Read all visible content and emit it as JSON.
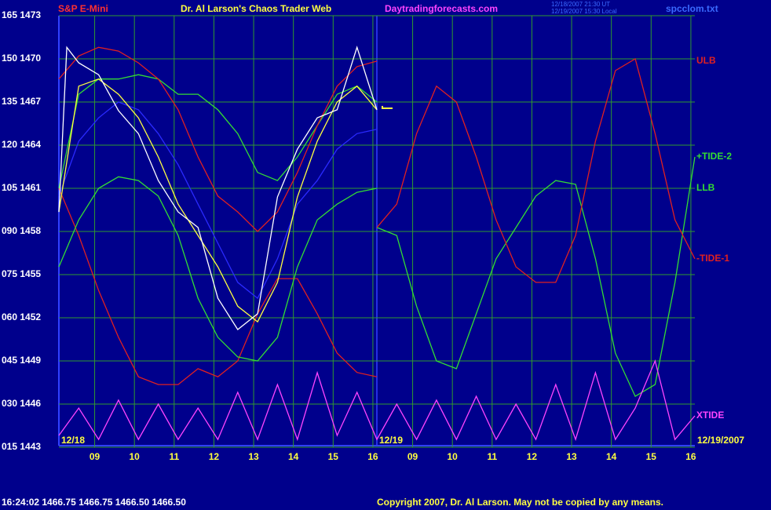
{
  "header": {
    "symbol": "S&P E-Mini",
    "title": "Dr. Al Larson's Chaos Trader Web",
    "site": "Daytradingforecasts.com",
    "stamp": [
      "12/18/2007 21:30 UT",
      "12/19/2007 15:30 Local"
    ],
    "file": "spcclom.txt"
  },
  "footer": {
    "quote": "16:24:02  1466.75  1466.75  1466.50  1466.50",
    "copyright": "Copyright 2007, Dr. Al Larson. May not be copied by any means."
  },
  "chart_data": {
    "type": "line",
    "date_labels": [
      "12/18",
      "12/19",
      "12/19/2007"
    ],
    "xlim": [
      0,
      16
    ],
    "xticks": [
      {
        "value": 0.9,
        "label": "09"
      },
      {
        "value": 1.9,
        "label": "10"
      },
      {
        "value": 2.9,
        "label": "11"
      },
      {
        "value": 3.9,
        "label": "12"
      },
      {
        "value": 4.9,
        "label": "13"
      },
      {
        "value": 5.9,
        "label": "14"
      },
      {
        "value": 6.9,
        "label": "15"
      },
      {
        "value": 7.9,
        "label": "16"
      },
      {
        "value": 8.9,
        "label": "09"
      },
      {
        "value": 9.9,
        "label": "10"
      },
      {
        "value": 10.9,
        "label": "11"
      },
      {
        "value": 11.9,
        "label": "12"
      },
      {
        "value": 12.9,
        "label": "13"
      },
      {
        "value": 13.9,
        "label": "14"
      },
      {
        "value": 14.9,
        "label": "15"
      },
      {
        "value": 15.9,
        "label": "16"
      }
    ],
    "ylim": [
      15,
      165
    ],
    "yticks": [
      {
        "value": 165,
        "label": "165 1473"
      },
      {
        "value": 150,
        "label": "150 1470"
      },
      {
        "value": 135,
        "label": "135 1467"
      },
      {
        "value": 120,
        "label": "120 1464"
      },
      {
        "value": 105,
        "label": "105 1461"
      },
      {
        "value": 90,
        "label": "090 1458"
      },
      {
        "value": 75,
        "label": "075 1455"
      },
      {
        "value": 60,
        "label": "060 1452"
      },
      {
        "value": 45,
        "label": "045 1449"
      },
      {
        "value": 30,
        "label": "030 1446"
      },
      {
        "value": 15,
        "label": "015 1443"
      }
    ],
    "grid": true,
    "series": [
      {
        "color": "#e02020",
        "x": [
          0,
          0.5,
          1,
          1.5,
          2,
          2.5,
          3,
          3.5,
          4,
          4.5,
          5,
          5.5,
          6,
          6.5,
          7,
          7.5,
          8
        ],
        "values": [
          105,
          88.6,
          69.5,
          53.2,
          39.5,
          36.8,
          36.8,
          42.3,
          39.5,
          45,
          61.4,
          73.6,
          73.6,
          61.4,
          47.7,
          41,
          39.5
        ]
      },
      {
        "color": "#33dd33",
        "x": [
          0,
          0.5,
          1,
          1.5,
          2,
          2.5,
          3,
          3.5,
          4,
          4.5,
          5,
          5.5,
          6,
          6.5,
          7,
          7.5,
          8
        ],
        "values": [
          105,
          137.7,
          143,
          143,
          144.5,
          143,
          137.7,
          137.7,
          132.3,
          124,
          110.5,
          107.7,
          115.9,
          126.8,
          137.7,
          140.5,
          135
        ]
      },
      {
        "name": "LLB",
        "color": "#33dd33",
        "x": [
          0,
          0.5,
          1,
          1.5,
          2,
          2.5,
          3,
          3.5,
          4,
          4.5,
          5,
          5.5,
          6,
          6.5,
          7,
          7.5,
          8
        ],
        "values": [
          77.7,
          94,
          105,
          109,
          107.7,
          102.3,
          88.6,
          66.8,
          53.2,
          46.4,
          45,
          53.2,
          77.7,
          94,
          99.5,
          103.6,
          105
        ]
      },
      {
        "name": "ULB",
        "color": "#e02020",
        "x": [
          0,
          0.5,
          1,
          1.5,
          2,
          2.5,
          3,
          3.5,
          4,
          4.5,
          5,
          5.5,
          6,
          6.5,
          7,
          7.5,
          8
        ],
        "values": [
          143,
          151,
          154,
          152.7,
          148.6,
          143,
          132.3,
          115.9,
          102.3,
          96.8,
          90,
          96.8,
          110.5,
          126.8,
          140.5,
          147.3,
          149.2
        ]
      },
      {
        "color": "#2a2aff",
        "x": [
          0,
          0.5,
          1,
          1.5,
          2,
          2.5,
          3,
          3.5,
          4,
          4.5,
          5,
          5.5,
          6,
          6.5,
          7,
          7.5,
          8
        ],
        "values": [
          102.3,
          121.4,
          129.5,
          135,
          132.3,
          124,
          113.2,
          99.5,
          85.9,
          72.3,
          66.8,
          80.5,
          99.5,
          107.7,
          118.6,
          124,
          125.5
        ]
      },
      {
        "color": "#ffff40",
        "x": [
          0,
          0.5,
          1,
          1.5,
          2,
          2.5,
          3,
          3.5,
          4,
          4.5,
          5,
          5.5,
          6,
          6.5,
          7,
          7.5,
          8
        ],
        "values": [
          96.8,
          140.5,
          143,
          137.7,
          129.5,
          115.9,
          99.5,
          88.6,
          77.7,
          64,
          58.6,
          72.3,
          102,
          121.4,
          135,
          140.5,
          132.3
        ]
      },
      {
        "color": "#ffffff",
        "x": [
          0,
          0.2,
          0.5,
          1,
          1.5,
          2,
          2.5,
          3,
          3.5,
          4,
          4.5,
          5,
          5.5,
          6,
          6.5,
          7,
          7.5,
          8
        ],
        "values": [
          96.8,
          154,
          148.6,
          144.5,
          132,
          124,
          107.7,
          96.8,
          91.4,
          66.8,
          55.9,
          61.4,
          102,
          118.6,
          129.5,
          132.3,
          154,
          132.3
        ]
      },
      {
        "name": "+TIDE-2",
        "color": "#33dd33",
        "x": [
          8,
          8.5,
          9,
          9.5,
          10,
          10.5,
          11,
          11.5,
          12,
          12.5,
          13,
          13.5,
          14,
          14.5,
          15,
          15.5,
          16
        ],
        "values": [
          91.4,
          88.6,
          64,
          45,
          42.3,
          61.4,
          80.5,
          91.4,
          102.3,
          107.7,
          106.4,
          80.5,
          47.7,
          32.7,
          36.8,
          72.3,
          115.9
        ]
      },
      {
        "name": "-TIDE-1",
        "color": "#e02020",
        "x": [
          8,
          8.5,
          9,
          9.5,
          10,
          10.5,
          11,
          11.5,
          12,
          12.5,
          13,
          13.5,
          14,
          14.5,
          15,
          15.5,
          16
        ],
        "values": [
          91.4,
          99.5,
          124,
          140.5,
          135,
          115.9,
          94,
          77.7,
          72.3,
          72.3,
          88.6,
          121.4,
          145.9,
          150,
          124,
          94,
          80.5
        ]
      },
      {
        "name": "XTIDE",
        "color": "#ff44ff",
        "x": [
          0,
          0.5,
          1,
          1.5,
          2,
          2.5,
          3,
          3.5,
          4,
          4.5,
          5,
          5.5,
          6,
          6.5,
          7,
          7.5,
          8,
          8.5,
          9,
          9.5,
          10,
          10.5,
          11,
          11.5,
          12,
          12.5,
          13,
          13.5,
          14,
          14.5,
          15,
          15.5,
          16
        ],
        "values": [
          19.1,
          28.6,
          17.7,
          31.4,
          17.7,
          30,
          17.7,
          28.6,
          17.7,
          34.1,
          17.7,
          36.8,
          17.7,
          40.9,
          19.1,
          34.1,
          17.7,
          30,
          17.7,
          31.4,
          17.7,
          32.7,
          17.7,
          30,
          17.7,
          36.8,
          17.7,
          40.9,
          17.7,
          28.6,
          45,
          17.7,
          25.9
        ]
      }
    ]
  }
}
